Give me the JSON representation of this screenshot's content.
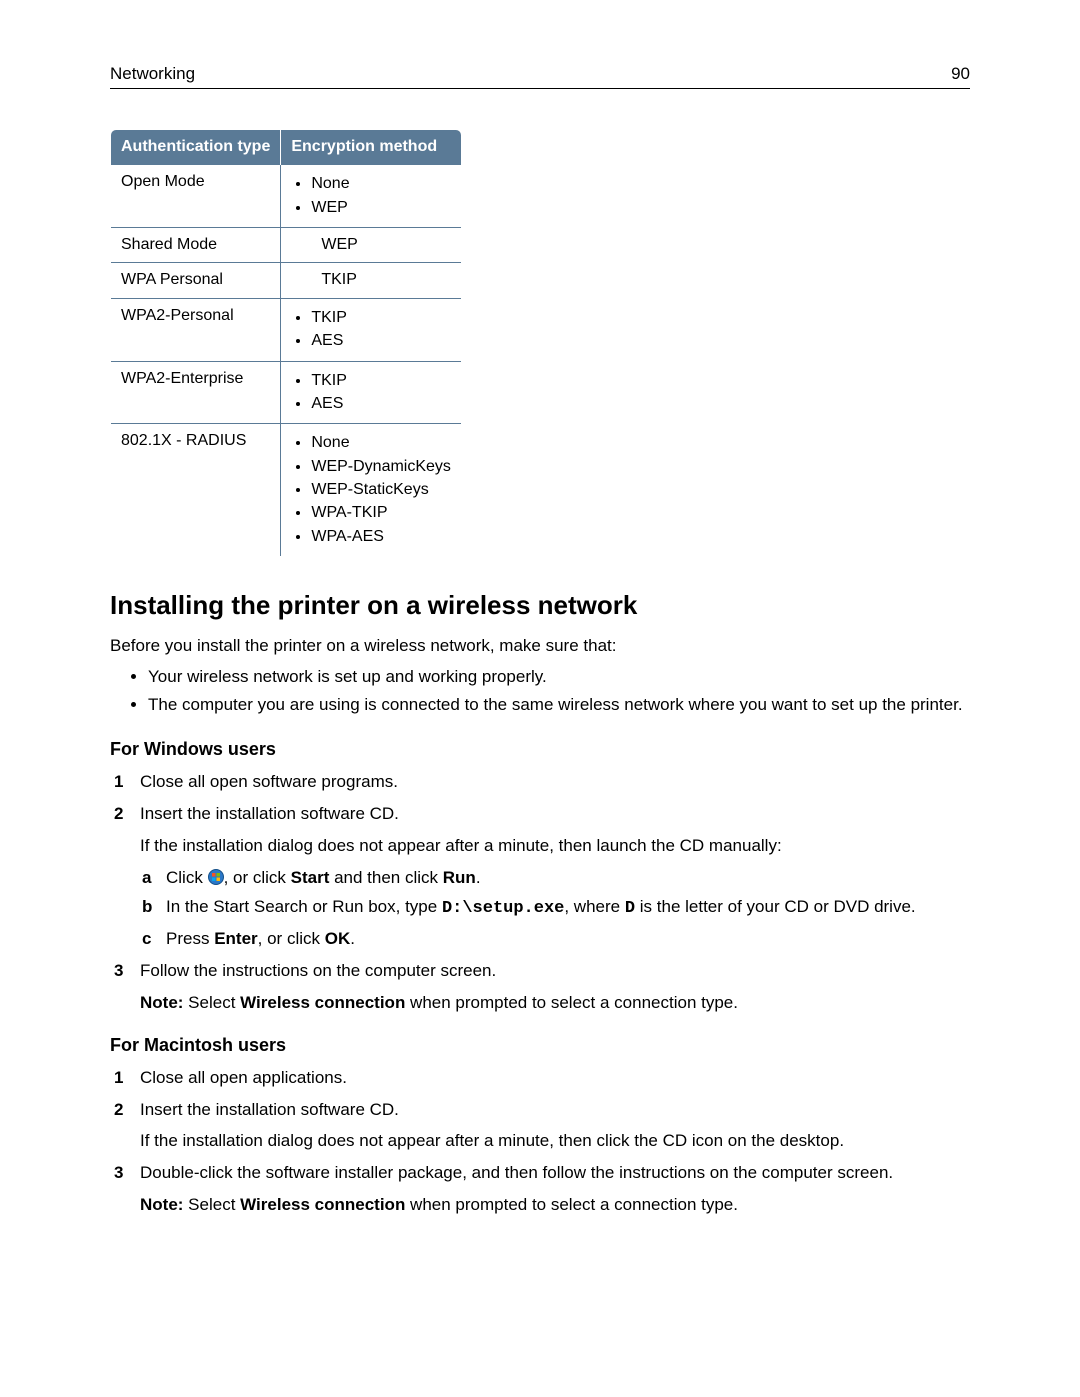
{
  "header": {
    "section": "Networking",
    "page": "90"
  },
  "table": {
    "header_bg": "#5a7a96",
    "header_fg": "#ffffff",
    "border_color": "#5a7a96",
    "columns": [
      "Authentication type",
      "Encryption method"
    ],
    "rows": [
      {
        "auth": "Open Mode",
        "enc_list": [
          "None",
          "WEP"
        ]
      },
      {
        "auth": "Shared Mode",
        "enc_single": "WEP"
      },
      {
        "auth": "WPA Personal",
        "enc_single": "TKIP"
      },
      {
        "auth": "WPA2-Personal",
        "enc_list": [
          "TKIP",
          "AES"
        ]
      },
      {
        "auth": "WPA2-Enterprise",
        "enc_list": [
          "TKIP",
          "AES"
        ]
      },
      {
        "auth": "802.1X - RADIUS",
        "enc_list": [
          "None",
          "WEP-DynamicKeys",
          "WEP-StaticKeys",
          "WPA-TKIP",
          "WPA-AES"
        ]
      }
    ]
  },
  "heading": "Installing the printer on a wireless network",
  "intro": "Before you install the printer on a wireless network, make sure that:",
  "intro_bullets": [
    "Your wireless network is set up and working properly.",
    "The computer you are using is connected to the same wireless network where you want to set up the printer."
  ],
  "windows": {
    "title": "For Windows users",
    "steps": {
      "s1": "Close all open software programs.",
      "s2": "Insert the installation software CD.",
      "s2_note": "If the installation dialog does not appear after a minute, then launch the CD manually:",
      "a_pre": "Click ",
      "a_mid": ", or click ",
      "a_start": "Start",
      "a_and": " and then click ",
      "a_run": "Run",
      "a_end": ".",
      "b_pre": "In the Start Search or Run box, type ",
      "b_code": "D:\\setup.exe",
      "b_mid": ", where ",
      "b_d": "D",
      "b_end": " is the letter of your CD or DVD drive.",
      "c_pre": "Press ",
      "c_enter": "Enter",
      "c_mid": ", or click ",
      "c_ok": "OK",
      "c_end": ".",
      "s3": "Follow the instructions on the computer screen.",
      "s3_note_lbl": "Note:",
      "s3_note_pre": " Select ",
      "s3_note_b": "Wireless connection",
      "s3_note_post": " when prompted to select a connection type."
    }
  },
  "mac": {
    "title": "For Macintosh users",
    "steps": {
      "s1": "Close all open applications.",
      "s2": "Insert the installation software CD.",
      "s2_note": "If the installation dialog does not appear after a minute, then click the CD icon on the desktop.",
      "s3": "Double-click the software installer package, and then follow the instructions on the computer screen.",
      "s3_note_lbl": "Note:",
      "s3_note_pre": " Select ",
      "s3_note_b": "Wireless connection",
      "s3_note_post": " when prompted to select a connection type."
    }
  }
}
